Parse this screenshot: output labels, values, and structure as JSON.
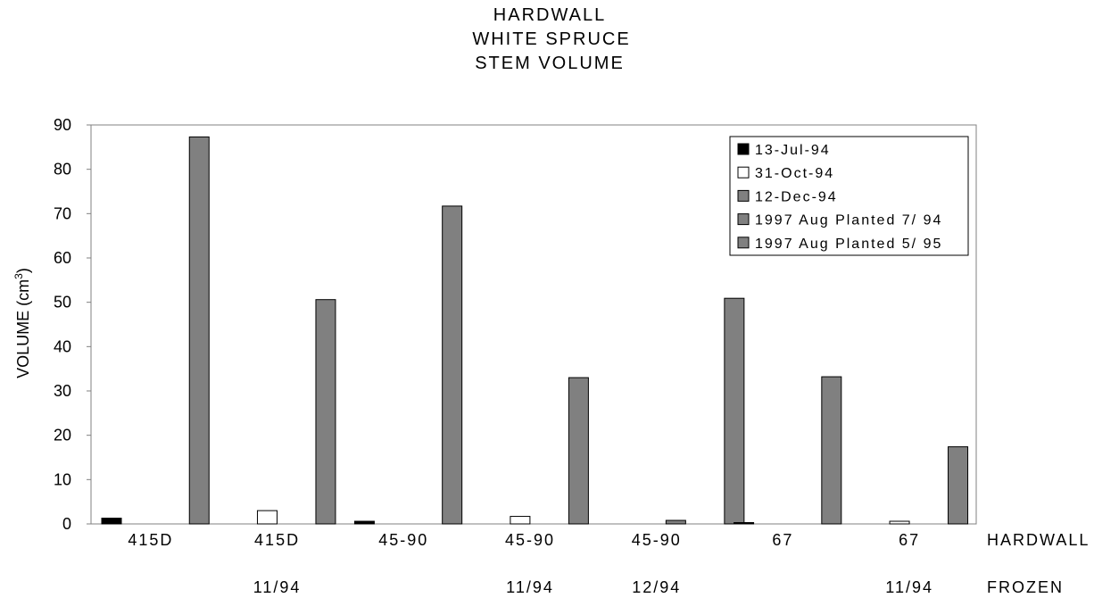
{
  "chart_data": {
    "type": "bar",
    "title": [
      "HARDWALL",
      "WHITE SPRUCE",
      "STEM VOLUME"
    ],
    "ylabel": "VOLUME (cm",
    "ylabel_sup": "3",
    "ylabel_close": ")",
    "ylim": [
      0,
      90
    ],
    "yticks": [
      0,
      10,
      20,
      30,
      40,
      50,
      60,
      70,
      80,
      90
    ],
    "grid": false,
    "legend_position": "top-right",
    "categories": [
      "415D",
      "415D",
      "45-90",
      "45-90",
      "45-90",
      "67",
      "67"
    ],
    "category_rows": [
      {
        "label": "HARDWALL",
        "values": [
          "415D",
          "415D",
          "45-90",
          "45-90",
          "45-90",
          "67",
          "67"
        ]
      },
      {
        "label": "FROZEN",
        "values": [
          "",
          "11/94",
          "",
          "11/94",
          "12/94",
          "",
          "11/94"
        ]
      }
    ],
    "series": [
      {
        "name": "13-Jul-94",
        "color": "#000000",
        "values": [
          1.3,
          null,
          0.6,
          null,
          null,
          0.3,
          null
        ]
      },
      {
        "name": "31-Oct-94",
        "color": "#ffffff",
        "values": [
          null,
          3.0,
          null,
          1.7,
          null,
          null,
          0.6
        ]
      },
      {
        "name": "12-Dec-94",
        "color": "#808080",
        "values": [
          null,
          null,
          null,
          null,
          0.8,
          null,
          null
        ]
      },
      {
        "name": "1997 Aug Planted 7/ 94",
        "color": "#808080",
        "values": [
          87.3,
          50.6,
          71.7,
          33.0,
          null,
          33.2,
          17.4
        ]
      },
      {
        "name": "1997 Aug Planted 5/ 95",
        "color": "#808080",
        "values": [
          null,
          null,
          null,
          null,
          50.9,
          null,
          null
        ]
      }
    ]
  }
}
